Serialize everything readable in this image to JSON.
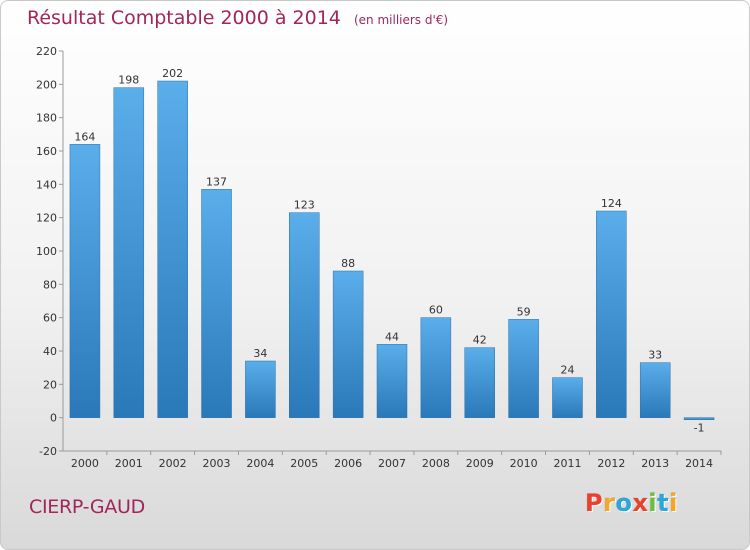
{
  "header": {
    "title": "Résultat Comptable 2000 à 2014",
    "unit_note": "(en milliers d'€)"
  },
  "footer": {
    "town": "CIERP-GAUD",
    "logo_letters": [
      "P",
      "r",
      "o",
      "x",
      "i",
      "t",
      "i"
    ],
    "logo_colors": [
      "#e8412c",
      "#f5a623",
      "#2aa6d8",
      "#e8412c",
      "#6bbf3a",
      "#2aa6d8",
      "#f5a623"
    ]
  },
  "chart_data": {
    "type": "bar",
    "title": "Résultat Comptable 2000 à 2014",
    "unit": "(en milliers d'€)",
    "categories": [
      "2000",
      "2001",
      "2002",
      "2003",
      "2004",
      "2005",
      "2006",
      "2007",
      "2008",
      "2009",
      "2010",
      "2011",
      "2012",
      "2013",
      "2014"
    ],
    "values": [
      164,
      198,
      202,
      137,
      34,
      123,
      88,
      44,
      60,
      42,
      59,
      24,
      124,
      33,
      -1
    ],
    "ylim": [
      -20,
      220
    ],
    "yticks": [
      -20,
      0,
      20,
      40,
      60,
      80,
      100,
      120,
      140,
      160,
      180,
      200,
      220
    ],
    "grid": false,
    "bar_color": "#4a9ee0",
    "bar_color_dark": "#2a7cc0"
  }
}
